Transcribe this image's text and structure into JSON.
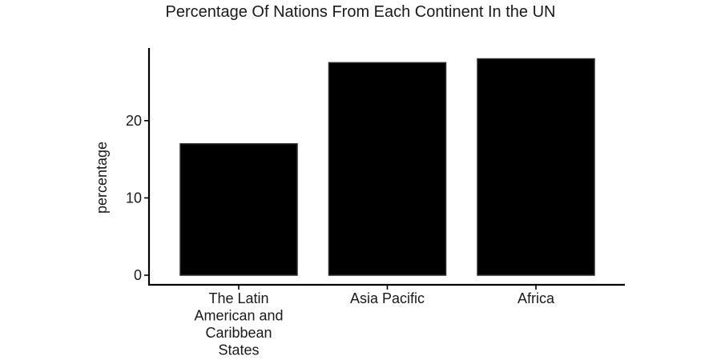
{
  "chart_data": {
    "type": "bar",
    "title": "Percentage Of Nations From Each Continent In the UN",
    "xlabel": "",
    "ylabel": "percentage",
    "categories": [
      "The Latin American and Caribbean States",
      "Asia Pacific",
      "Africa"
    ],
    "category_label_lines": [
      [
        "The Latin",
        "American and",
        "Caribbean",
        "States"
      ],
      [
        "Asia Pacific"
      ],
      [
        "Africa"
      ]
    ],
    "values": [
      17.0,
      27.5,
      28.0
    ],
    "yticks": [
      0,
      10,
      20
    ],
    "ylim": [
      0,
      29.4
    ],
    "grid": false,
    "legend": "none",
    "bar_color": "#000000",
    "axis_color": "#000000",
    "text_color": "#1a1a1a"
  }
}
